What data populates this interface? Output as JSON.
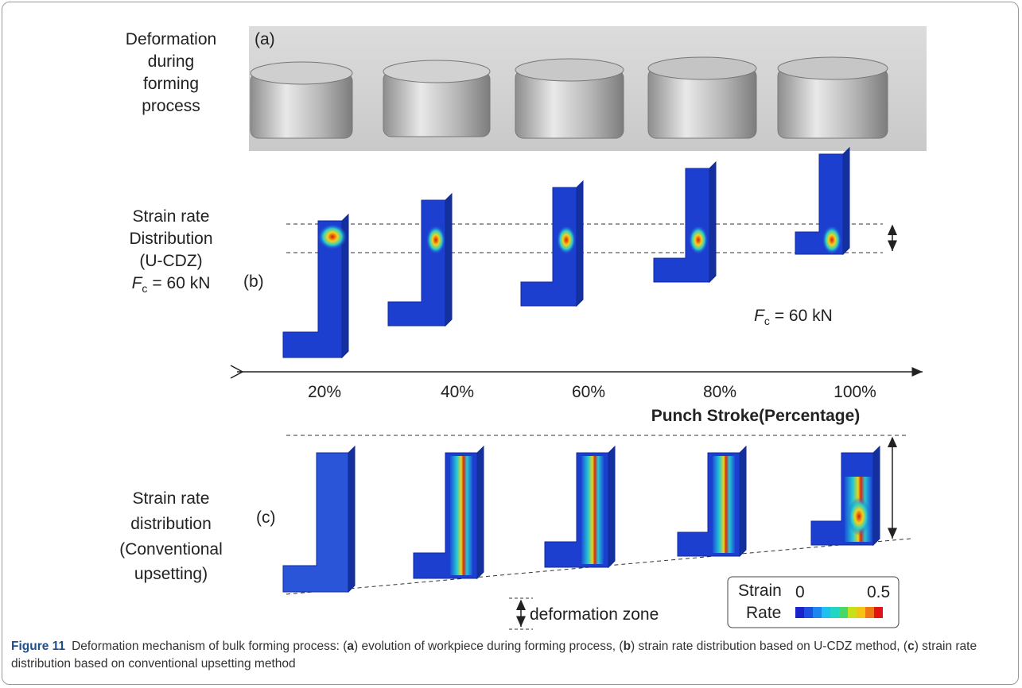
{
  "figure": {
    "panel_a": {
      "row_label": [
        "Deformation",
        "during",
        "forming",
        "process"
      ],
      "tag": "(a)"
    },
    "panel_b": {
      "row_label": [
        "Strain rate",
        "Distribution",
        "(U-CDZ)"
      ],
      "force": {
        "symbol": "F",
        "subscript": "c",
        "rest": "= 60 kN"
      },
      "tag": "(b)",
      "annotation": {
        "symbol": "F",
        "subscript": "c",
        "rest": "= 60 kN"
      }
    },
    "axis": {
      "ticks": [
        "20%",
        "40%",
        "60%",
        "80%",
        "100%"
      ],
      "label": "Punch Stroke(Percentage)"
    },
    "panel_c": {
      "row_label": [
        "Strain rate",
        "distribution",
        "(Conventional",
        "upsetting)"
      ],
      "tag": "(c)"
    },
    "legend": {
      "title": [
        "Strain",
        "Rate"
      ],
      "min": "0",
      "max": "0.5"
    },
    "zone_label": "deformation zone"
  },
  "caption": {
    "label": "Figure 11",
    "parts": [
      "Deformation mechanism of bulk forming process: (",
      "a",
      ") evolution of workpiece during forming process, (",
      "b",
      ") strain rate distribution based on U-CDZ method, (",
      "c",
      ") strain rate distribution based on conventional upsetting method"
    ]
  }
}
